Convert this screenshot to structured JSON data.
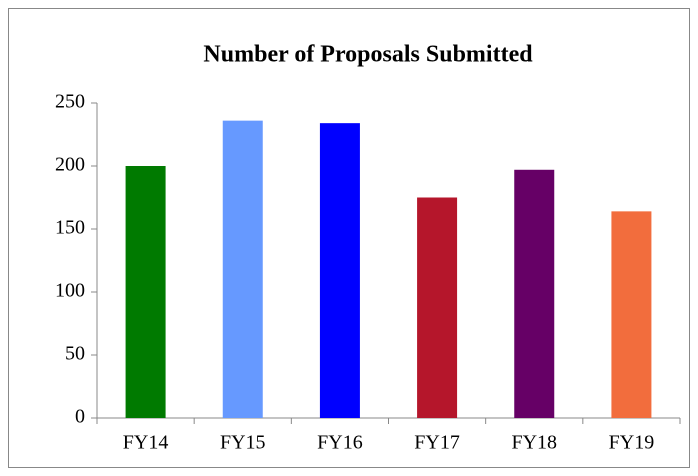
{
  "chart_data": {
    "type": "bar",
    "title": "Number of Proposals Submitted",
    "categories": [
      "FY14",
      "FY15",
      "FY16",
      "FY17",
      "FY18",
      "FY19"
    ],
    "values": [
      200,
      236,
      234,
      175,
      197,
      164
    ],
    "colors": [
      "#007a00",
      "#6699ff",
      "#0000ff",
      "#b5162b",
      "#660066",
      "#f26d3d"
    ],
    "ylim": [
      0,
      250
    ],
    "yticks": [
      0,
      50,
      100,
      150,
      200,
      250
    ],
    "grid": false
  }
}
